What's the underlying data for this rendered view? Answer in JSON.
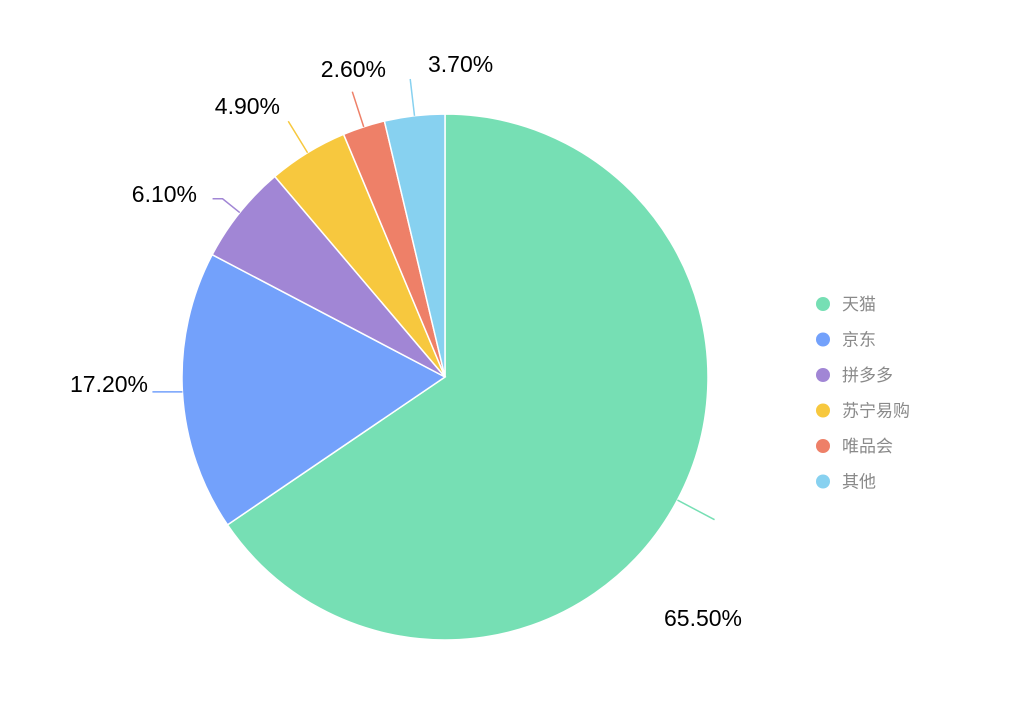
{
  "chart_data": {
    "type": "pie",
    "legend_position": "right",
    "slices": [
      {
        "name": "天猫",
        "value": 65.5,
        "label": "65.50%",
        "color": "#76dfb4"
      },
      {
        "name": "京东",
        "value": 17.2,
        "label": "17.20%",
        "color": "#73a1fb"
      },
      {
        "name": "拼多多",
        "value": 6.1,
        "label": "6.10%",
        "color": "#a186d5"
      },
      {
        "name": "苏宁易购",
        "value": 4.9,
        "label": "4.90%",
        "color": "#f7c83e"
      },
      {
        "name": "唯品会",
        "value": 2.6,
        "label": "2.60%",
        "color": "#ee8068"
      },
      {
        "name": "其他",
        "value": 3.7,
        "label": "3.70%",
        "color": "#87d1f0"
      }
    ]
  }
}
